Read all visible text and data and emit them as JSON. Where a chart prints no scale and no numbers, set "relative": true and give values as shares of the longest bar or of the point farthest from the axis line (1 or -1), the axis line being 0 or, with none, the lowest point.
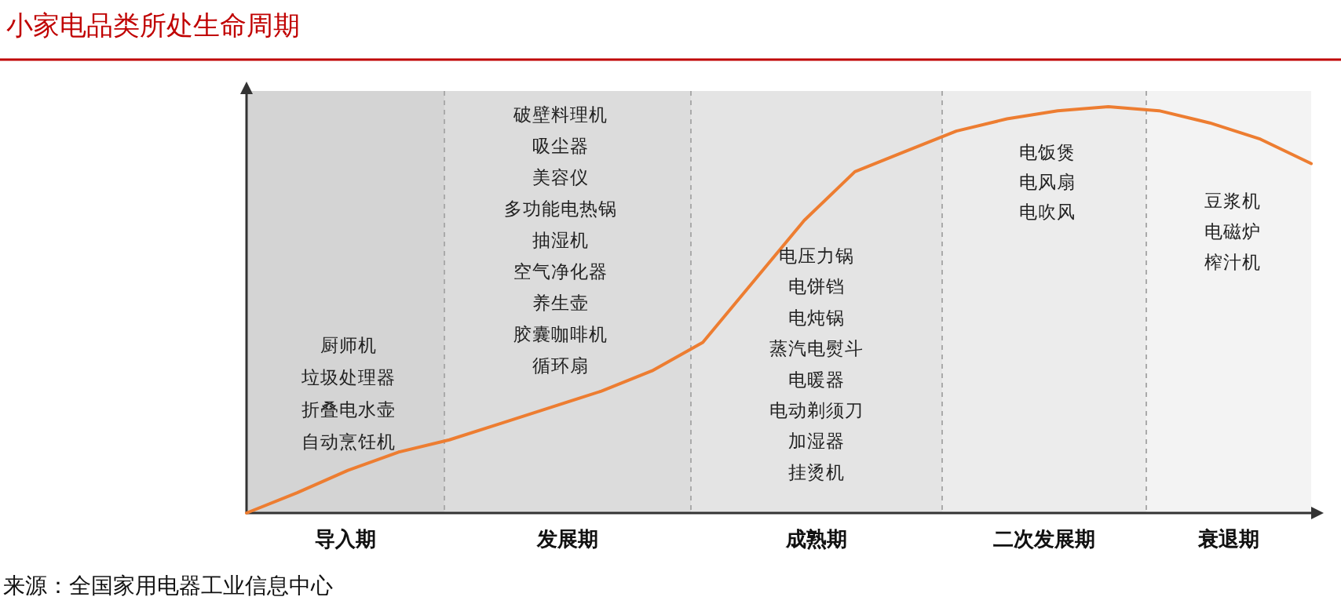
{
  "chart_data": {
    "type": "line",
    "title": "小家电品类所处生命周期",
    "relative": true,
    "categories": [
      null,
      null,
      null,
      null,
      null,
      null,
      null,
      null,
      null,
      null,
      null,
      null,
      null,
      null,
      null,
      null,
      null,
      null,
      null,
      null,
      null,
      null
    ],
    "series": [
      {
        "color": "#ed7d31",
        "values": [
          0,
          0.05,
          0.105,
          0.15,
          0.18,
          0.22,
          0.26,
          0.3,
          0.35,
          0.42,
          0.57,
          0.72,
          0.84,
          0.89,
          0.94,
          0.97,
          0.99,
          1.0,
          0.99,
          0.96,
          0.92,
          0.86
        ]
      }
    ],
    "annotations": [
      "厨师机",
      "垃圾处理器",
      "折叠电水壶",
      "自动烹饪机",
      "破壁料理机",
      "吸尘器",
      "美容仪",
      "多功能电热锅",
      "抽湿机",
      "空气净化器",
      "养生壶",
      "胶囊咖啡机",
      "循环扇",
      "电压力锅",
      "电饼铛",
      "电炖锅",
      "蒸汽电熨斗",
      "电暖器",
      "电动剃须刀",
      "加湿器",
      "挂烫机",
      "电饭煲",
      "电风扇",
      "电吹风",
      "豆浆机",
      "电磁炉",
      "榨汁机",
      "导入期",
      "发展期",
      "成熟期",
      "二次发展期",
      "衰退期",
      "来源：全国家用电器工业信息中心"
    ]
  }
}
